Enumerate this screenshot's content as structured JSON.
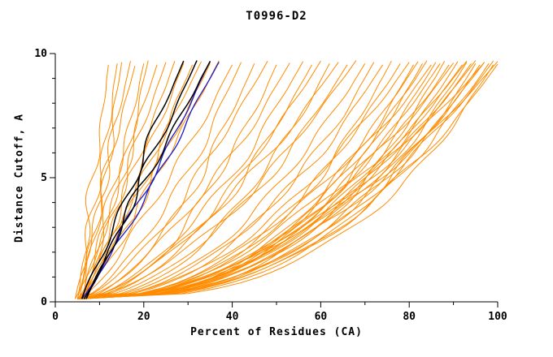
{
  "chart_data": {
    "type": "line",
    "title": "T0996-D2",
    "xlabel": "Percent of Residues (CA)",
    "ylabel": "Distance Cutoff, A",
    "xlim": [
      0,
      100
    ],
    "ylim": [
      0,
      10
    ],
    "x_major_ticks": [
      0,
      20,
      40,
      60,
      80,
      100
    ],
    "x_minor_ticks": [
      10,
      30,
      50,
      70,
      90
    ],
    "y_major_ticks": [
      0,
      5,
      10
    ],
    "y_minor_ticks": [
      1,
      2,
      3,
      4,
      6,
      7,
      8,
      9
    ],
    "grid": false,
    "legend": null,
    "colors": {
      "model": "#ff8c00",
      "reference": "#1a1acd",
      "best": "#000000"
    },
    "curve_format": [
      "x_at_top",
      "shape_exponent",
      "x_at_bottom",
      "y_top"
    ],
    "series": [
      {
        "name": "predicted-models",
        "color_key": "model",
        "stroke_width": 1,
        "noise_amp": 0.9,
        "curves": [
          [
            12,
            0.9,
            5,
            9.55
          ],
          [
            14,
            1.0,
            5.5,
            9.6
          ],
          [
            15,
            0.85,
            6,
            9.65
          ],
          [
            17,
            0.95,
            4.5,
            9.7
          ],
          [
            18,
            1.05,
            5,
            9.5
          ],
          [
            20,
            0.9,
            6.5,
            9.6
          ],
          [
            21,
            0.8,
            5.5,
            9.72
          ],
          [
            23,
            1.0,
            6,
            9.55
          ],
          [
            25,
            0.9,
            4.5,
            9.65
          ],
          [
            27,
            0.85,
            5,
            9.7
          ],
          [
            29,
            0.95,
            6,
            9.6
          ],
          [
            31,
            0.9,
            5.5,
            9.55
          ],
          [
            33,
            1.0,
            6.5,
            9.68
          ],
          [
            35,
            0.85,
            5,
            9.6
          ],
          [
            37,
            0.9,
            6,
            9.72
          ],
          [
            40,
            0.8,
            5.5,
            9.55
          ],
          [
            42,
            0.65,
            5,
            9.65
          ],
          [
            45,
            0.6,
            6,
            9.6
          ],
          [
            48,
            0.7,
            5.5,
            9.7
          ],
          [
            50,
            0.55,
            6.5,
            9.55
          ],
          [
            53,
            0.65,
            5,
            9.62
          ],
          [
            56,
            0.6,
            5.5,
            9.68
          ],
          [
            58,
            0.55,
            6,
            9.55
          ],
          [
            60,
            0.6,
            5,
            9.7
          ],
          [
            62,
            0.5,
            6.5,
            9.6
          ],
          [
            64,
            0.65,
            5.5,
            9.65
          ],
          [
            66,
            0.55,
            6,
            9.55
          ],
          [
            68,
            0.6,
            5,
            9.72
          ],
          [
            70,
            0.5,
            6,
            9.6
          ],
          [
            72,
            0.45,
            5.5,
            9.65
          ],
          [
            74,
            0.5,
            6.5,
            9.55
          ],
          [
            76,
            0.4,
            5,
            9.7
          ],
          [
            78,
            0.45,
            6,
            9.6
          ],
          [
            80,
            0.5,
            5.5,
            9.65
          ],
          [
            81,
            0.4,
            6.5,
            9.55
          ],
          [
            82,
            0.45,
            5,
            9.68
          ],
          [
            83,
            0.38,
            6,
            9.6
          ],
          [
            84,
            0.42,
            5.5,
            9.72
          ],
          [
            85,
            0.48,
            6.5,
            9.55
          ],
          [
            86,
            0.4,
            5,
            9.65
          ],
          [
            87,
            0.44,
            6,
            9.6
          ],
          [
            88,
            0.36,
            5.5,
            9.7
          ],
          [
            89,
            0.42,
            6.5,
            9.55
          ],
          [
            90,
            0.46,
            5,
            9.62
          ],
          [
            91,
            0.4,
            6,
            9.68
          ],
          [
            92,
            0.44,
            5.5,
            9.55
          ],
          [
            93,
            0.38,
            6.5,
            9.65
          ],
          [
            94,
            0.42,
            5,
            9.6
          ],
          [
            95,
            0.46,
            6,
            9.72
          ],
          [
            96,
            0.4,
            5.5,
            9.55
          ],
          [
            97,
            0.44,
            6.5,
            9.65
          ],
          [
            98,
            0.38,
            5,
            9.6
          ],
          [
            99,
            0.42,
            6,
            9.7
          ],
          [
            100,
            0.4,
            5.5,
            9.58
          ],
          [
            100,
            0.5,
            6.5,
            9.68
          ],
          [
            99,
            0.35,
            5,
            9.55
          ],
          [
            97,
            0.5,
            6,
            9.65
          ],
          [
            95,
            0.36,
            5.5,
            9.6
          ],
          [
            93,
            0.48,
            6.5,
            9.7
          ]
        ]
      },
      {
        "name": "reference-models",
        "color_key": "reference",
        "stroke_width": 1.3,
        "noise_amp": 0.7,
        "curves": [
          [
            35,
            0.9,
            6,
            9.7
          ],
          [
            37,
            0.95,
            6.5,
            9.66
          ]
        ]
      },
      {
        "name": "highlighted-models",
        "color_key": "best",
        "stroke_width": 1.5,
        "noise_amp": 0.9,
        "curves": [
          [
            29,
            1.0,
            6,
            9.7
          ],
          [
            32,
            0.95,
            6.5,
            9.72
          ],
          [
            35,
            1.05,
            7,
            9.68
          ]
        ]
      }
    ]
  }
}
